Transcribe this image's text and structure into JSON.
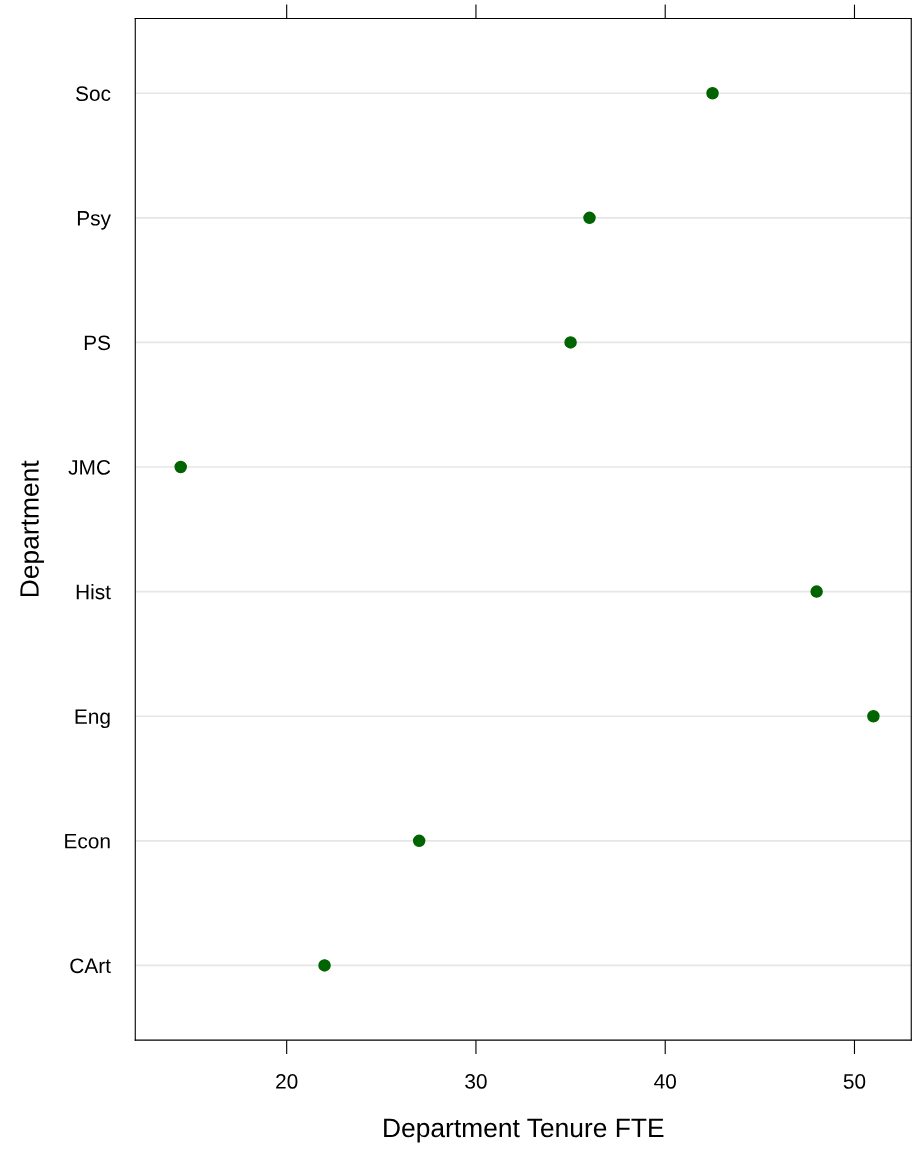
{
  "chart_data": {
    "type": "scatter",
    "xlabel": "Department Tenure FTE",
    "ylabel": "Department",
    "categories": [
      "Soc",
      "Psy",
      "PS",
      "JMC",
      "Hist",
      "Eng",
      "Econ",
      "CArt"
    ],
    "orientation": "horizontal",
    "values": [
      42.5,
      36,
      35,
      14.4,
      48,
      51,
      27,
      22
    ],
    "color": "#006400",
    "marker": "circle",
    "xlim": [
      12,
      53
    ],
    "xticks": [
      20,
      30,
      40,
      50
    ],
    "grid": "y"
  }
}
